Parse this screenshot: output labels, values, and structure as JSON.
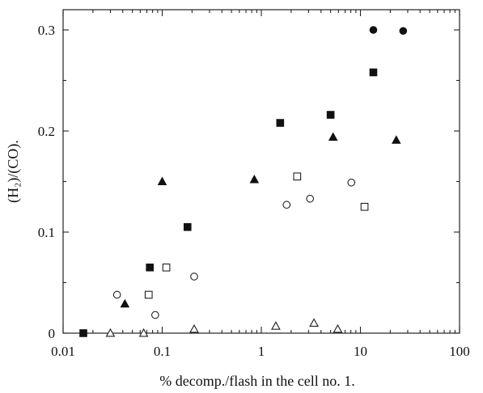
{
  "chart_data": {
    "type": "scatter",
    "title": "",
    "xlabel": "% decomp./flash in the cell no. 1.",
    "ylabel": "(H₂)/(CO).",
    "xscale": "log",
    "xlim": [
      0.01,
      100
    ],
    "ylim": [
      0,
      0.32
    ],
    "x_ticks": [
      0.01,
      0.1,
      1,
      10,
      100
    ],
    "x_tick_labels": [
      "0.01",
      "0.1",
      "1",
      "10",
      "100"
    ],
    "y_ticks": [
      0,
      0.1,
      0.2,
      0.3
    ],
    "y_tick_labels": [
      "0",
      "0.1",
      "0.2",
      "0.3"
    ],
    "grid": false,
    "series": [
      {
        "marker": "filled-circle",
        "points": [
          [
            13.5,
            0.3
          ],
          [
            27,
            0.299
          ]
        ]
      },
      {
        "marker": "filled-square",
        "points": [
          [
            0.016,
            0.0
          ],
          [
            0.075,
            0.065
          ],
          [
            0.18,
            0.105
          ],
          [
            1.55,
            0.208
          ],
          [
            5.0,
            0.216
          ],
          [
            13.5,
            0.258
          ]
        ]
      },
      {
        "marker": "filled-triangle",
        "points": [
          [
            0.042,
            0.029
          ],
          [
            0.1,
            0.15
          ],
          [
            0.85,
            0.152
          ],
          [
            5.3,
            0.194
          ],
          [
            23,
            0.191
          ]
        ]
      },
      {
        "marker": "open-circle",
        "points": [
          [
            0.035,
            0.038
          ],
          [
            0.085,
            0.018
          ],
          [
            0.21,
            0.056
          ],
          [
            1.8,
            0.127
          ],
          [
            3.1,
            0.133
          ],
          [
            8.1,
            0.149
          ]
        ]
      },
      {
        "marker": "open-square",
        "points": [
          [
            0.073,
            0.038
          ],
          [
            0.11,
            0.065
          ],
          [
            2.3,
            0.155
          ],
          [
            11,
            0.125
          ]
        ]
      },
      {
        "marker": "open-triangle",
        "points": [
          [
            0.03,
            0.0
          ],
          [
            0.065,
            0.0
          ],
          [
            0.21,
            0.004
          ],
          [
            1.4,
            0.007
          ],
          [
            3.4,
            0.01
          ],
          [
            5.9,
            0.004
          ]
        ]
      }
    ]
  }
}
